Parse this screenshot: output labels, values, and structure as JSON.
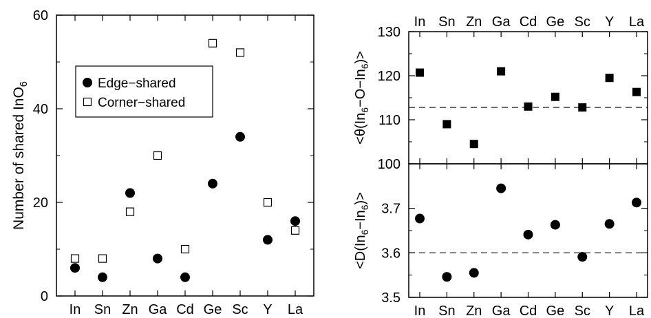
{
  "chart_data": [
    {
      "type": "scatter",
      "categories": [
        "In",
        "Sn",
        "Zn",
        "Ga",
        "Cd",
        "Ge",
        "Sc",
        "Y",
        "La"
      ],
      "ylabel_main": "Number of shared InO",
      "ylabel_sub": "6",
      "ylim": [
        0,
        60
      ],
      "yticks": [
        0,
        20,
        40,
        60
      ],
      "legend_position": "top-left",
      "series": [
        {
          "name": "Edge−shared",
          "marker": "filled-circle",
          "values": [
            6,
            4,
            22,
            8,
            4,
            24,
            34,
            12,
            16
          ]
        },
        {
          "name": "Corner−shared",
          "marker": "open-square",
          "values": [
            8,
            8,
            18,
            30,
            10,
            54,
            52,
            20,
            14
          ]
        }
      ]
    },
    {
      "type": "scatter",
      "categories": [
        "In",
        "Sn",
        "Zn",
        "Ga",
        "Cd",
        "Ge",
        "Sc",
        "Y",
        "La"
      ],
      "ylabel_parts": [
        "<θ(In",
        "6",
        "−O−In",
        "6",
        ")>"
      ],
      "ylim": [
        100,
        130
      ],
      "yticks": [
        100,
        110,
        120,
        130
      ],
      "reference_line": 112.8,
      "series": [
        {
          "marker": "filled-square",
          "values": [
            120.7,
            109.0,
            104.5,
            121.0,
            113.0,
            115.2,
            112.8,
            119.5,
            116.3
          ]
        }
      ]
    },
    {
      "type": "scatter",
      "categories": [
        "In",
        "Sn",
        "Zn",
        "Ga",
        "Cd",
        "Ge",
        "Sc",
        "Y",
        "La"
      ],
      "ylabel_parts": [
        "<D(In",
        "6",
        "−In",
        "6",
        ")>"
      ],
      "ylim": [
        3.5,
        3.8
      ],
      "yticks": [
        3.5,
        3.6,
        3.7
      ],
      "tick_decimals": 1,
      "reference_line": 3.6,
      "series": [
        {
          "marker": "filled-circle",
          "values": [
            3.677,
            3.546,
            3.555,
            3.745,
            3.641,
            3.663,
            3.591,
            3.665,
            3.713
          ]
        }
      ]
    }
  ]
}
